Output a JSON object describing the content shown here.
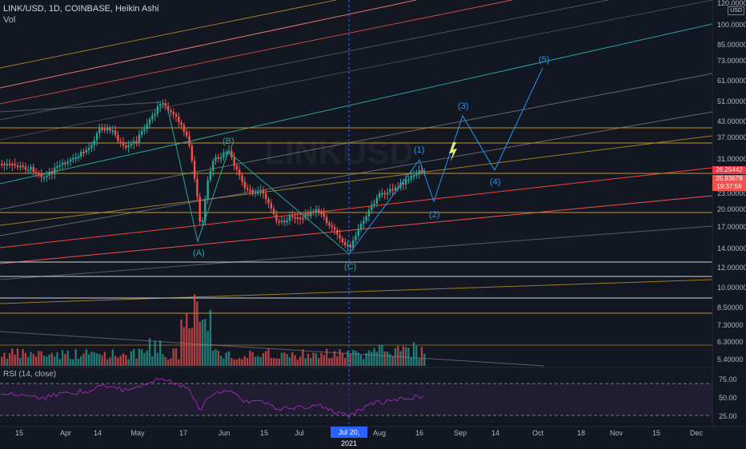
{
  "header": {
    "symbol_line": "LINK/USD, 1D, COINBASE, Heikin Ashi",
    "vol_label": "Vol"
  },
  "watermark": "LINKUSD",
  "currency": "USD",
  "rsi_label": "RSI (14, close)",
  "price_axis": {
    "ticks": [
      "120.00000",
      "100.00000",
      "85.00000",
      "73.00000",
      "61.00000",
      "51.00000",
      "43.00000",
      "37.00000",
      "31.00000",
      "26.25442",
      "25.93678",
      "19:37:56",
      "23.00000",
      "20.00000",
      "17.00000",
      "14.00000",
      "12.00000",
      "10.00000",
      "8.50000",
      "7.30000",
      "6.30000",
      "5.40000"
    ],
    "tags": [
      {
        "text": "26.25442",
        "color": "#f23645"
      },
      {
        "text": "25.93678",
        "color": "#ef5350"
      },
      {
        "text": "19:37:56",
        "color": "#ef5350"
      }
    ]
  },
  "rsi_axis": {
    "ticks": [
      "75.00",
      "50.00",
      "25.00"
    ]
  },
  "time_axis": {
    "ticks": [
      "15",
      "Apr",
      "14",
      "May",
      "17",
      "Jun",
      "15",
      "Jul",
      "Aug",
      "16",
      "Sep",
      "14",
      "Oct",
      "18",
      "Nov",
      "15",
      "Dec"
    ],
    "cursor_label": "Jul 20, 2021"
  },
  "waves": {
    "A": "(A)",
    "B": "(B)",
    "C": "(C)",
    "w1": "(1)",
    "w2": "(2)",
    "w3": "(3)",
    "w4": "(4)",
    "w5": "(5)"
  },
  "colors": {
    "background": "#131722",
    "up": "#26a69a",
    "down": "#ef5350",
    "rsi": "#9c27b0",
    "cursor": "#2962ff",
    "wave_abc": "#26a69a",
    "wave_123": "#2196f3"
  }
}
